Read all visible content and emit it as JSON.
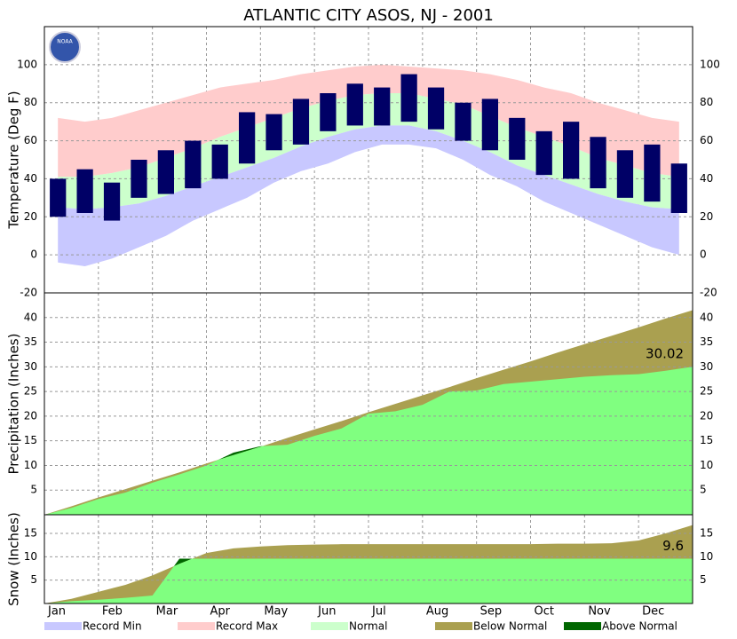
{
  "title": "ATLANTIC CITY  ASOS, NJ - 2001",
  "logo_text": "NOAA",
  "months": [
    "Jan",
    "Feb",
    "Mar",
    "Apr",
    "May",
    "Jun",
    "Jul",
    "Aug",
    "Sep",
    "Oct",
    "Nov",
    "Dec"
  ],
  "legend": [
    {
      "name": "Record Min",
      "color": "#c8c8ff"
    },
    {
      "name": "Record Max",
      "color": "#ffcccc"
    },
    {
      "name": "Normal",
      "color": "#ccffcc"
    },
    {
      "name": "Below Normal",
      "color": "#aaa050"
    },
    {
      "name": "Above Normal",
      "color": "#006600"
    }
  ],
  "chart_data": [
    {
      "type": "range",
      "ylabel": "Temperature (Deg F)",
      "ylim": [
        -20,
        120
      ],
      "yticks": [
        -20,
        0,
        20,
        40,
        60,
        80,
        100
      ],
      "grid": true,
      "observed_color": "#000066",
      "record_max": [
        72,
        70,
        72,
        76,
        80,
        84,
        88,
        90,
        92,
        95,
        97,
        99,
        100,
        99,
        98,
        97,
        95,
        92,
        88,
        85,
        80,
        76,
        72,
        70
      ],
      "record_min": [
        -4,
        -6,
        -2,
        4,
        10,
        18,
        24,
        30,
        38,
        44,
        48,
        54,
        58,
        58,
        56,
        50,
        42,
        36,
        28,
        22,
        16,
        10,
        4,
        0
      ],
      "normal_high": [
        41,
        41,
        43,
        46,
        51,
        56,
        62,
        67,
        72,
        77,
        81,
        84,
        85,
        85,
        82,
        79,
        73,
        67,
        62,
        57,
        51,
        47,
        43,
        41
      ],
      "normal_low": [
        25,
        24,
        25,
        27,
        31,
        36,
        41,
        46,
        51,
        57,
        62,
        66,
        68,
        68,
        65,
        60,
        54,
        47,
        42,
        37,
        32,
        28,
        25,
        24
      ],
      "observed_high": [
        40,
        45,
        38,
        50,
        55,
        60,
        58,
        75,
        74,
        82,
        85,
        90,
        88,
        95,
        88,
        80,
        82,
        72,
        65,
        70,
        62,
        55,
        58,
        48
      ],
      "observed_low": [
        20,
        22,
        18,
        30,
        32,
        35,
        40,
        48,
        55,
        58,
        65,
        68,
        68,
        70,
        66,
        60,
        55,
        50,
        42,
        40,
        35,
        30,
        28,
        22
      ]
    },
    {
      "type": "cumulative",
      "ylabel": "Precipitation (Inches)",
      "ylim": [
        0,
        45
      ],
      "yticks": [
        5,
        10,
        15,
        20,
        25,
        30,
        35,
        40
      ],
      "grid": true,
      "observed_color": "#80ff80",
      "annotation": "30.02",
      "normal": [
        0,
        1.7,
        3.5,
        5.2,
        6.9,
        8.6,
        10.4,
        12.1,
        13.8,
        15.6,
        17.3,
        19.0,
        20.8,
        22.5,
        24.2,
        25.9,
        27.7,
        29.4,
        31.1,
        32.9,
        34.6,
        36.3,
        38.0,
        39.8,
        41.5
      ],
      "observed": [
        0,
        1.4,
        3.2,
        4.5,
        6.5,
        8.2,
        10.0,
        12.6,
        13.9,
        14.2,
        16.0,
        17.5,
        20.5,
        21.0,
        22.3,
        25.0,
        25.2,
        26.5,
        27.0,
        27.5,
        28.0,
        28.3,
        28.5,
        29.2,
        30.02
      ]
    },
    {
      "type": "cumulative",
      "ylabel": "Snow (Inches)",
      "ylim": [
        0,
        19
      ],
      "yticks": [
        5,
        10,
        15
      ],
      "grid": true,
      "observed_color": "#80ff80",
      "annotation": "9.6",
      "normal": [
        0,
        1,
        2.5,
        4,
        6,
        8.5,
        10.8,
        11.8,
        12.2,
        12.5,
        12.6,
        12.7,
        12.7,
        12.7,
        12.7,
        12.7,
        12.7,
        12.7,
        12.7,
        12.8,
        12.8,
        12.9,
        13.5,
        15,
        16.8
      ],
      "observed": [
        0,
        0.5,
        0.8,
        1.2,
        1.7,
        9.6,
        9.6,
        9.6,
        9.6,
        9.6,
        9.6,
        9.6,
        9.6,
        9.6,
        9.6,
        9.6,
        9.6,
        9.6,
        9.6,
        9.6,
        9.6,
        9.6,
        9.6,
        9.6,
        9.6
      ]
    }
  ]
}
